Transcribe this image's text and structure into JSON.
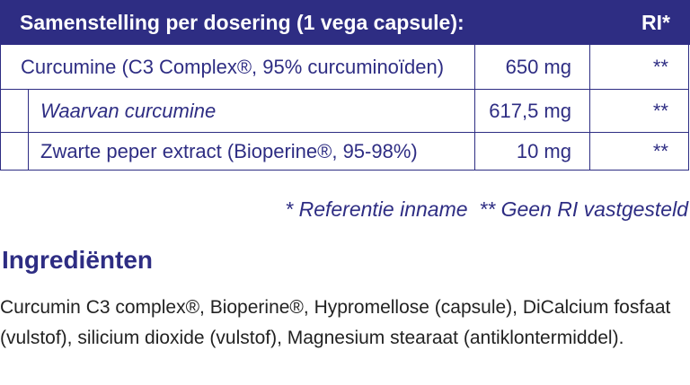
{
  "table": {
    "header": [
      "Samenstelling per dosering (1 vega capsule):",
      "RI*"
    ],
    "rows": [
      [
        "Curcumine (C3 Complex®, 95% curcuminoïden)",
        "650 mg",
        "**"
      ],
      [
        "Waarvan curcumine",
        "617,5 mg",
        "**"
      ],
      [
        "Zwarte peper extract (Bioperine®, 95-98%)",
        "10 mg",
        "**"
      ]
    ],
    "footnote": "* Referentie inname  ** Geen RI vastgesteld"
  },
  "ingredients": {
    "title": "Ingrediënten",
    "text": "Curcumin C3 complex®, Bioperine®, Hypromellose (capsule), DiCalcium fosfaat (vulstof), silicium dioxide (vulstof), Magnesium stearaat (antiklontermiddel)."
  }
}
